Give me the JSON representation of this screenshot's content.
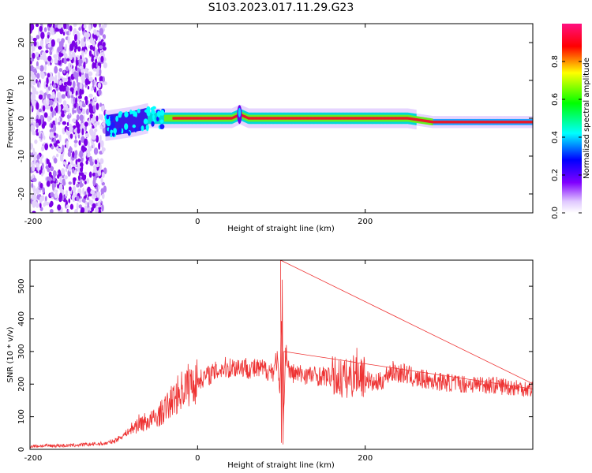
{
  "figure_title": "S103.2023.017.11.29.G23",
  "colors": {
    "snr_line": "#ee3333",
    "frame": "#000000",
    "noise": "#8a2be2"
  },
  "chart_data": [
    {
      "type": "heatmap",
      "title": "S103.2023.017.11.29.G23",
      "xlabel": "Height of straight line (km)",
      "ylabel": "Frequency (Hz)",
      "xlim": [
        -200,
        400
      ],
      "ylim": [
        -25,
        25
      ],
      "x_ticks": [
        -200,
        0,
        200
      ],
      "y_ticks": [
        -20,
        -10,
        0,
        10,
        20
      ],
      "colorbar": {
        "label": "Normalized spectral amplitude",
        "range": [
          0,
          1
        ],
        "ticks": [
          0.0,
          0.2,
          0.4,
          0.6,
          0.8
        ],
        "colormap": [
          "#ffffff",
          "#e0c8ff",
          "#8000ff",
          "#0000ff",
          "#00ffff",
          "#00ff00",
          "#ffff00",
          "#ff0000"
        ]
      },
      "ridge": {
        "x": [
          -110,
          -80,
          -60,
          -40,
          -20,
          0,
          40,
          50,
          60,
          100,
          150,
          200,
          250,
          280,
          350,
          400
        ],
        "freq_hz": [
          -2,
          -1,
          0,
          0,
          0,
          0,
          0,
          1,
          0,
          0,
          0,
          0,
          0,
          -1,
          -1,
          -1
        ]
      }
    },
    {
      "type": "line",
      "xlabel": "Height of straight line (km)",
      "ylabel": "SNR (10 * v/v)",
      "xlim": [
        -200,
        400
      ],
      "ylim": [
        0,
        580
      ],
      "x_ticks": [
        -200,
        0,
        200
      ],
      "y_ticks": [
        0,
        100,
        200,
        300,
        400,
        500
      ],
      "series": [
        {
          "x": [
            -200,
            -150,
            -110,
            -100,
            -90,
            -80,
            -70,
            -60,
            -50,
            -40,
            -30,
            -20,
            -10,
            0,
            10,
            20,
            30,
            40,
            50,
            60,
            70,
            80,
            90,
            95,
            98,
            100,
            102,
            105,
            110,
            120,
            130,
            140,
            150,
            160,
            170,
            180,
            190,
            200,
            210,
            220,
            230,
            240,
            250,
            260,
            270,
            280,
            300,
            320,
            340,
            360,
            380,
            400
          ],
          "y": [
            10,
            12,
            18,
            25,
            40,
            60,
            80,
            85,
            95,
            120,
            150,
            180,
            200,
            210,
            225,
            235,
            250,
            250,
            255,
            250,
            245,
            245,
            240,
            280,
            160,
            400,
            60,
            300,
            235,
            230,
            230,
            225,
            225,
            220,
            220,
            215,
            240,
            220,
            200,
            210,
            240,
            235,
            230,
            215,
            215,
            210,
            205,
            200,
            200,
            195,
            190,
            185
          ]
        }
      ]
    }
  ]
}
